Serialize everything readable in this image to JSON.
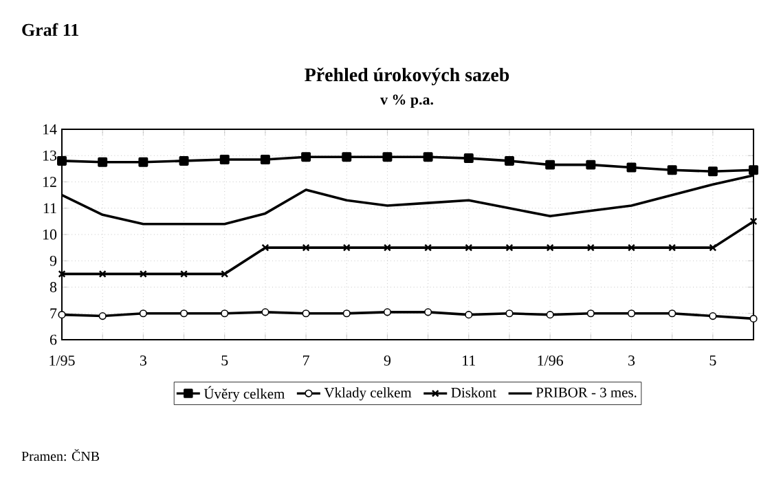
{
  "chart_data": {
    "type": "line",
    "title": "Přehled úrokových sazeb",
    "subtitle": "v % p.a.",
    "annotations": [
      "Graf 11",
      "Pramen: ČNB"
    ],
    "categories": [
      "1/95",
      null,
      "3",
      null,
      "5",
      null,
      "7",
      null,
      "9",
      null,
      "11",
      null,
      "1/96",
      null,
      "3",
      null,
      "5",
      null
    ],
    "ylim": [
      6,
      14
    ],
    "yticks": [
      6,
      7,
      8,
      9,
      10,
      11,
      12,
      13,
      14
    ],
    "grid": true,
    "legend": "bottom",
    "series": [
      {
        "name": "Úvěry celkem",
        "color": "#000000",
        "marker": "square",
        "values": [
          12.8,
          12.75,
          12.75,
          12.8,
          12.85,
          12.85,
          12.95,
          12.95,
          12.95,
          12.95,
          12.9,
          12.8,
          12.65,
          12.65,
          12.55,
          12.45,
          12.4,
          12.45
        ]
      },
      {
        "name": "Vklady celkem",
        "color": "#000000",
        "marker": "circle",
        "values": [
          6.95,
          6.9,
          7.0,
          7.0,
          7.0,
          7.05,
          7.0,
          7.0,
          7.05,
          7.05,
          6.95,
          7.0,
          6.95,
          7.0,
          7.0,
          7.0,
          6.9,
          6.8
        ]
      },
      {
        "name": "Diskont",
        "color": "#000000",
        "marker": "cross",
        "values": [
          8.5,
          8.5,
          8.5,
          8.5,
          8.5,
          9.5,
          9.5,
          9.5,
          9.5,
          9.5,
          9.5,
          9.5,
          9.5,
          9.5,
          9.5,
          9.5,
          9.5,
          10.5
        ]
      },
      {
        "name": "PRIBOR - 3 mes.",
        "color": "#000000",
        "marker": "none",
        "values": [
          11.5,
          10.75,
          10.4,
          10.4,
          10.4,
          10.8,
          11.7,
          11.3,
          11.1,
          11.2,
          11.3,
          11.0,
          10.7,
          10.9,
          11.1,
          11.5,
          11.9,
          12.25
        ]
      }
    ]
  }
}
